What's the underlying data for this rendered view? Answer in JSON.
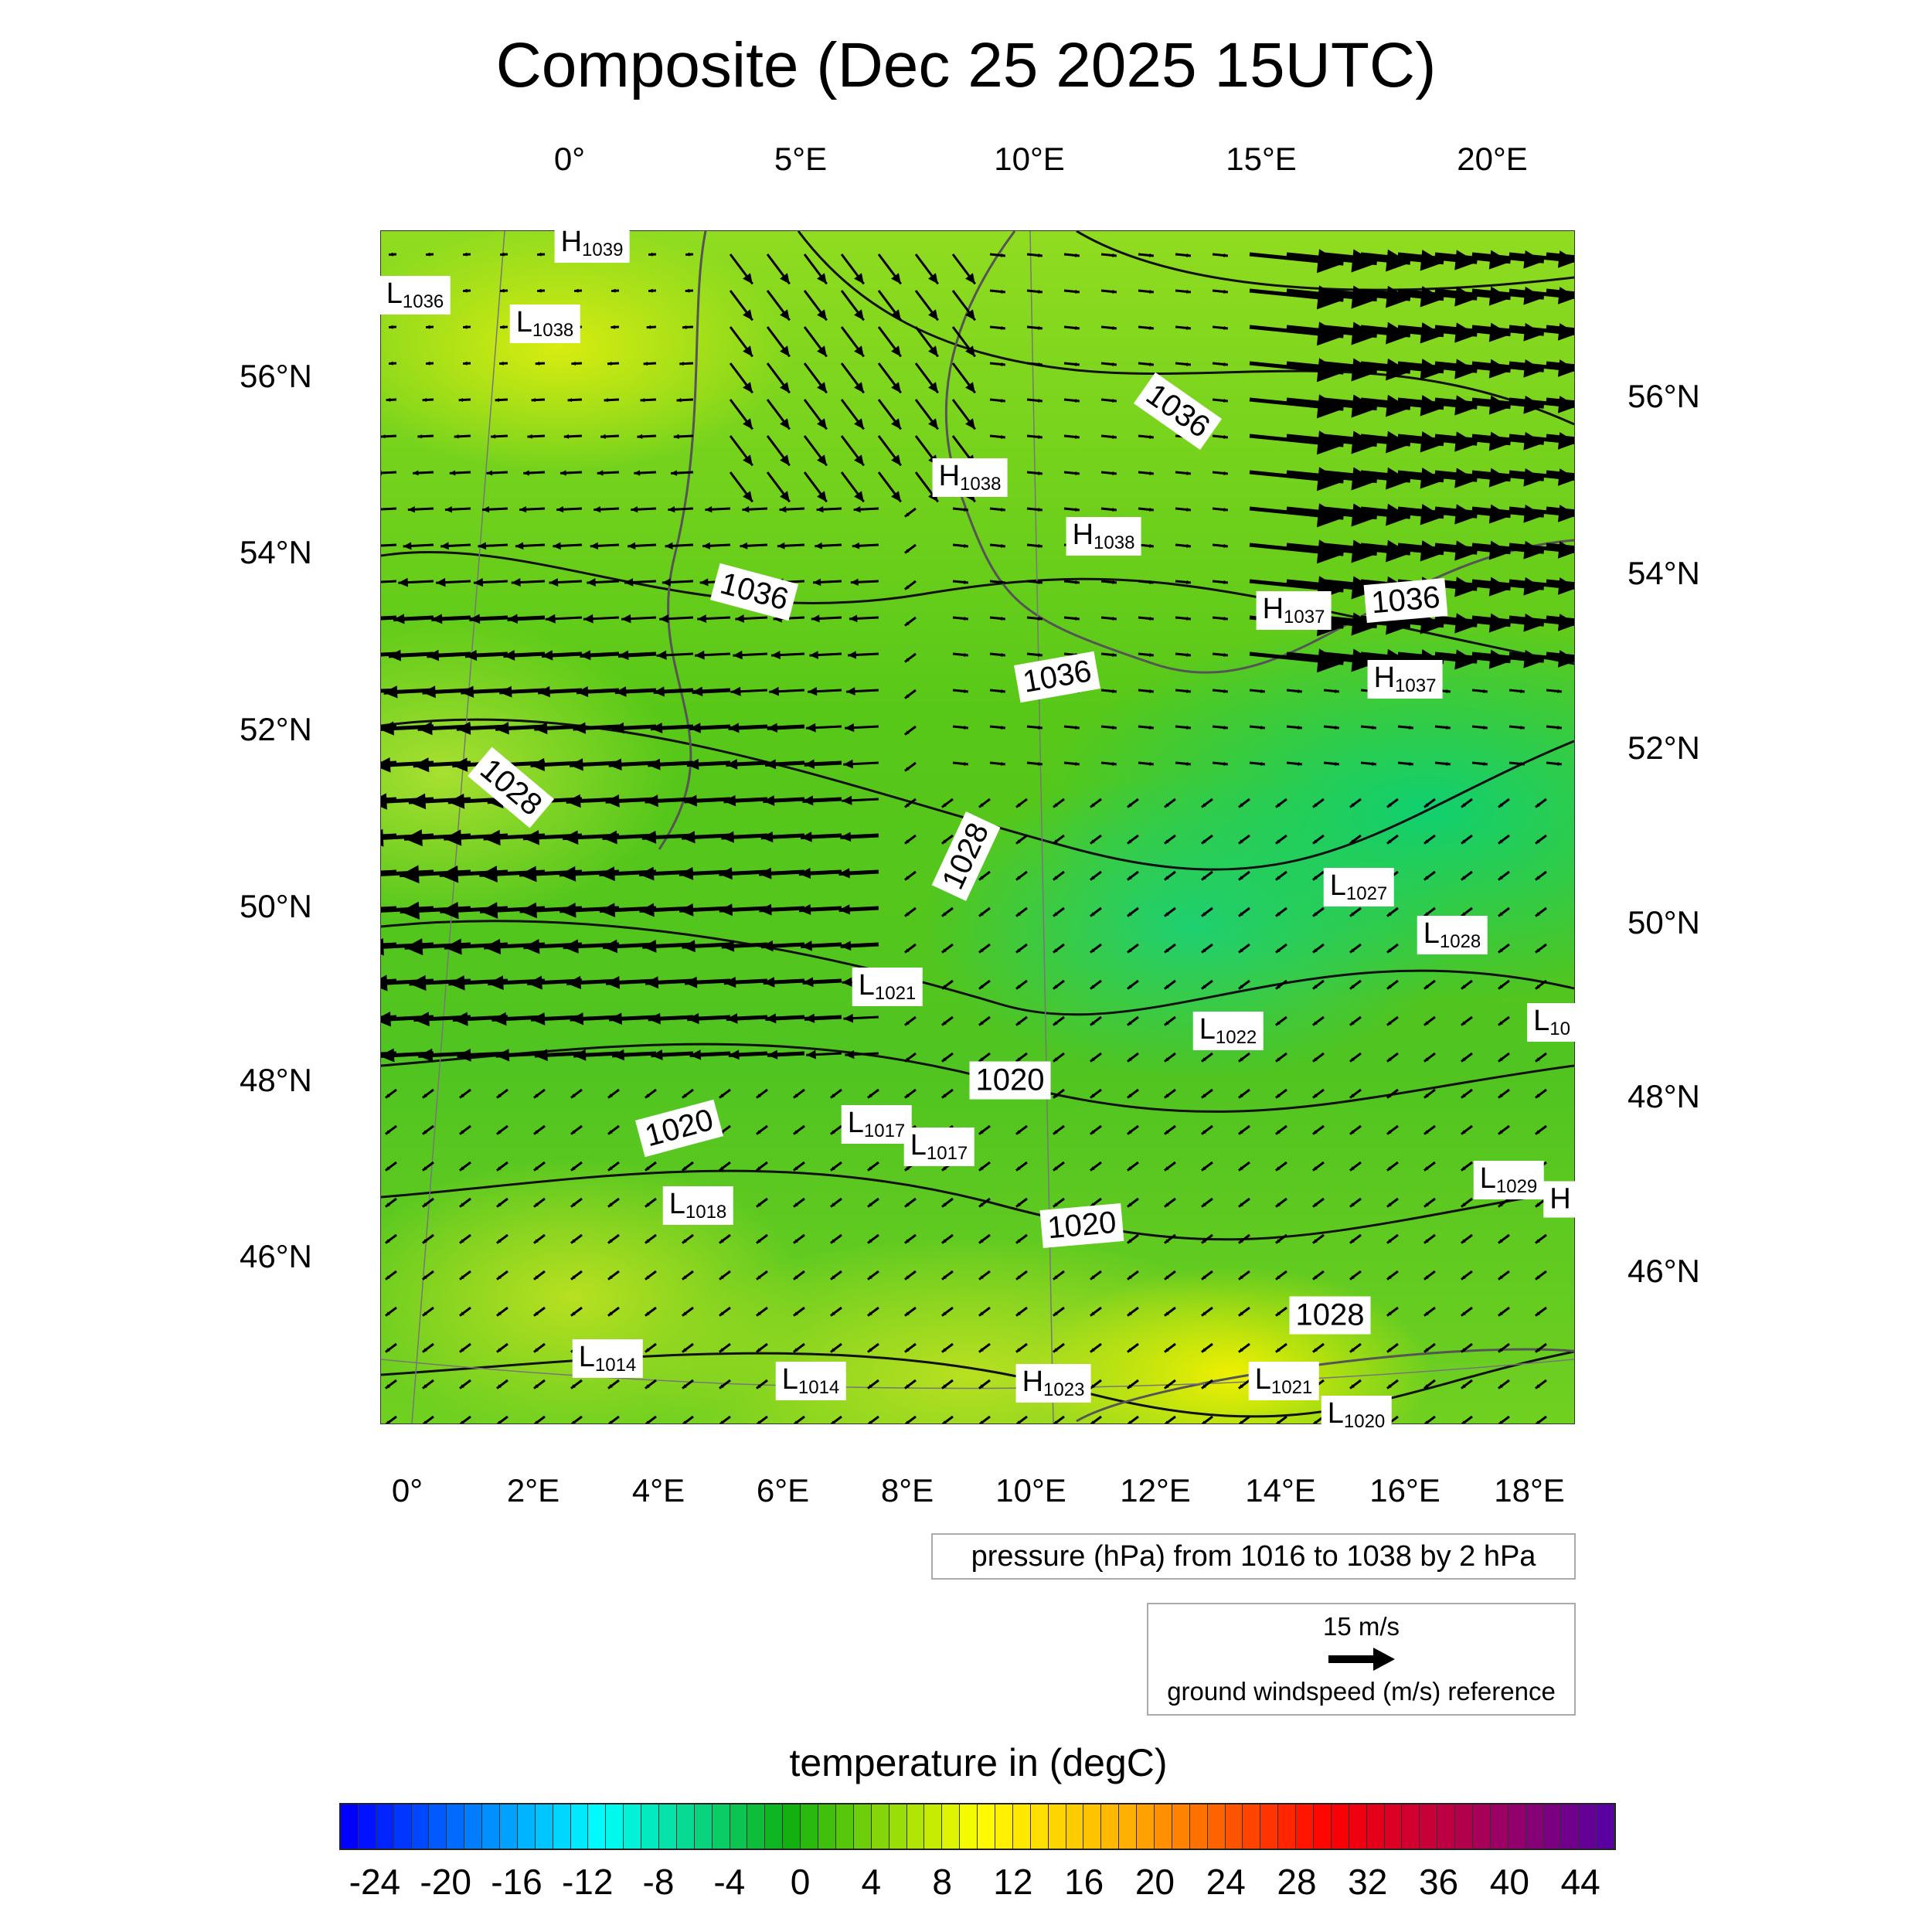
{
  "title": "Composite (Dec 25 2025 15UTC)",
  "top_lon_ticks": [
    "0°",
    "5°E",
    "10°E",
    "15°E",
    "20°E"
  ],
  "bottom_lon_ticks": [
    "0°",
    "2°E",
    "4°E",
    "6°E",
    "8°E",
    "10°E",
    "12°E",
    "14°E",
    "16°E",
    "18°E"
  ],
  "left_lat_ticks": [
    "56°N",
    "54°N",
    "52°N",
    "50°N",
    "48°N",
    "46°N"
  ],
  "right_lat_ticks": [
    "56°N",
    "54°N",
    "52°N",
    "50°N",
    "48°N",
    "46°N"
  ],
  "pressure_labels": [
    {
      "kind": "H",
      "value": "1039"
    },
    {
      "kind": "L",
      "value": "1036"
    },
    {
      "kind": "L",
      "value": "1038"
    },
    {
      "kind": "H",
      "value": "1038"
    },
    {
      "kind": "H",
      "value": "1038"
    },
    {
      "kind": "",
      "value": "1036"
    },
    {
      "kind": "H",
      "value": "1037"
    },
    {
      "kind": "",
      "value": "1036"
    },
    {
      "kind": "H",
      "value": "1037"
    },
    {
      "kind": "",
      "value": "1036"
    },
    {
      "kind": "",
      "value": "1036"
    },
    {
      "kind": "",
      "value": "1028"
    },
    {
      "kind": "",
      "value": "1028"
    },
    {
      "kind": "L",
      "value": "1027"
    },
    {
      "kind": "L",
      "value": "1028"
    },
    {
      "kind": "L",
      "value": "10"
    },
    {
      "kind": "L",
      "value": "1021"
    },
    {
      "kind": "L",
      "value": "1022"
    },
    {
      "kind": "",
      "value": "1020"
    },
    {
      "kind": "",
      "value": "1020"
    },
    {
      "kind": "L",
      "value": "1017"
    },
    {
      "kind": "L",
      "value": "1017"
    },
    {
      "kind": "L",
      "value": "1018"
    },
    {
      "kind": "L",
      "value": "1029"
    },
    {
      "kind": "H",
      "value": ""
    },
    {
      "kind": "",
      "value": "1020"
    },
    {
      "kind": "",
      "value": "1028"
    },
    {
      "kind": "L",
      "value": "1014"
    },
    {
      "kind": "L",
      "value": "1014"
    },
    {
      "kind": "H",
      "value": "1023"
    },
    {
      "kind": "L",
      "value": "1021"
    },
    {
      "kind": "L",
      "value": "1020"
    }
  ],
  "pressure_legend": "pressure (hPa) from 1016 to 1038 by 2 hPa",
  "wind_legend": {
    "speed": "15 m/s",
    "label": "ground windspeed (m/s) reference"
  },
  "chart_data": {
    "type": "heatmap",
    "title": "Composite (Dec 25 2025 15UTC)",
    "colorbar": {
      "title": "temperature in (degC)",
      "min": -26,
      "max": 46,
      "step": 1,
      "tick_labels": [
        "-24",
        "-20",
        "-16",
        "-12",
        "-8",
        "-4",
        "0",
        "4",
        "8",
        "12",
        "16",
        "20",
        "24",
        "28",
        "32",
        "36",
        "40",
        "44"
      ]
    },
    "lon_range": [
      -0.5,
      18.6
    ],
    "lat_range": [
      44.5,
      57.5
    ],
    "contour": {
      "field": "pressure (hPa)",
      "min": 1016,
      "max": 1038,
      "step": 2
    },
    "vectors": {
      "field": "ground windspeed",
      "reference_ms": 15
    }
  }
}
